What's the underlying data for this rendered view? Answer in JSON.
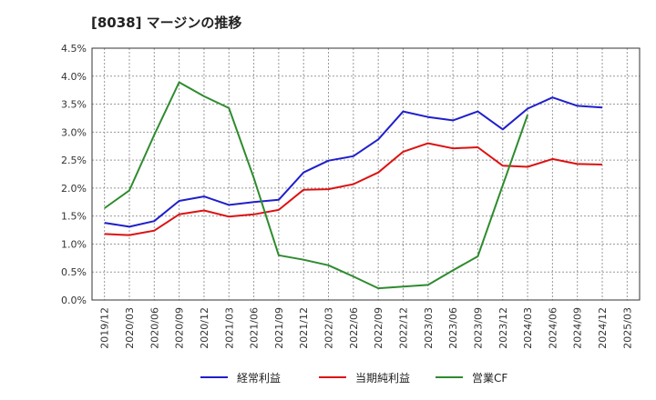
{
  "chart_data": {
    "type": "line",
    "title": "[8038]  マージンの推移",
    "xlabel": "",
    "ylabel": "",
    "x": [
      "2019/12",
      "2020/03",
      "2020/06",
      "2020/09",
      "2020/12",
      "2021/03",
      "2021/06",
      "2021/09",
      "2021/12",
      "2022/03",
      "2022/06",
      "2022/09",
      "2022/12",
      "2023/03",
      "2023/06",
      "2023/09",
      "2023/12",
      "2024/03",
      "2024/06",
      "2024/09",
      "2024/12",
      "2025/03"
    ],
    "ylim": [
      0,
      4.5
    ],
    "yticks": [
      "0.0%",
      "0.5%",
      "1.0%",
      "1.5%",
      "2.0%",
      "2.5%",
      "3.0%",
      "3.5%",
      "4.0%",
      "4.5%"
    ],
    "grid": true,
    "legend_position": "bottom",
    "series": [
      {
        "name": "経常利益",
        "color": "#1f1fcc",
        "values": [
          1.38,
          1.31,
          1.41,
          1.77,
          1.85,
          1.7,
          1.75,
          1.79,
          2.28,
          2.49,
          2.57,
          2.87,
          3.37,
          3.27,
          3.21,
          3.37,
          3.05,
          3.42,
          3.62,
          3.47,
          3.44,
          null
        ]
      },
      {
        "name": "当期純利益",
        "color": "#dd1111",
        "values": [
          1.18,
          1.16,
          1.24,
          1.53,
          1.6,
          1.49,
          1.53,
          1.61,
          1.97,
          1.98,
          2.07,
          2.28,
          2.65,
          2.8,
          2.71,
          2.73,
          2.4,
          2.38,
          2.52,
          2.43,
          2.42,
          null
        ]
      },
      {
        "name": "営業CF",
        "color": "#2e8b2e",
        "values": [
          1.64,
          1.96,
          2.95,
          3.89,
          3.64,
          3.43,
          2.18,
          0.8,
          0.72,
          0.62,
          0.42,
          0.21,
          0.24,
          0.27,
          0.53,
          0.78,
          2.05,
          3.31,
          null,
          null,
          null,
          null
        ]
      }
    ]
  }
}
